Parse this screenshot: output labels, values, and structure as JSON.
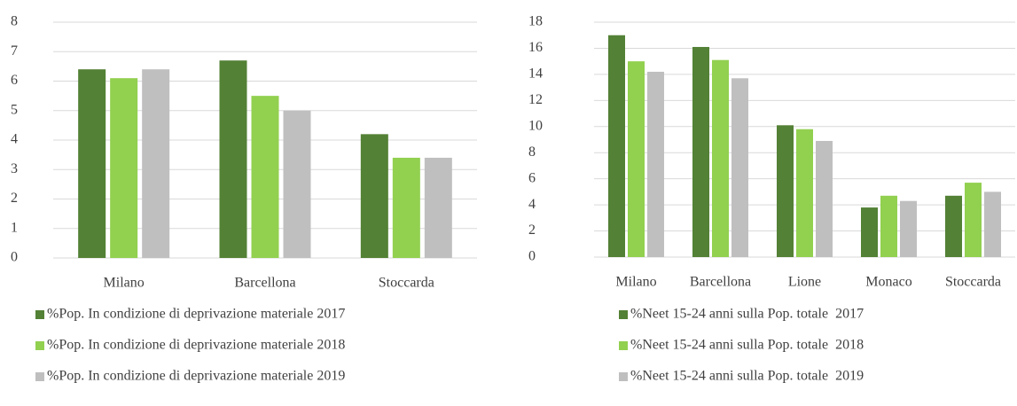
{
  "chart_data": [
    {
      "type": "bar",
      "categories": [
        "Milano",
        "Barcellona",
        "Stoccarda"
      ],
      "series": [
        {
          "name": "%Pop. In condizione di deprivazione materiale 2017",
          "color": "#538135",
          "values": [
            6.4,
            6.7,
            4.2
          ]
        },
        {
          "name": "%Pop. In condizione di deprivazione materiale 2018",
          "color": "#92d050",
          "values": [
            6.1,
            5.5,
            3.4
          ]
        },
        {
          "name": "%Pop. In condizione di deprivazione materiale 2019",
          "color": "#bfbfbf",
          "values": [
            6.4,
            5.0,
            3.4
          ]
        }
      ],
      "ylim": [
        0,
        8
      ],
      "yticks": [
        0,
        1,
        2,
        3,
        4,
        5,
        6,
        7,
        8
      ],
      "grid": true
    },
    {
      "type": "bar",
      "categories": [
        "Milano",
        "Barcellona",
        "Lione",
        "Monaco",
        "Stoccarda"
      ],
      "series": [
        {
          "name": "%Neet 15-24 anni sulla Pop. totale  2017",
          "color": "#538135",
          "values": [
            17.0,
            16.1,
            10.1,
            3.8,
            4.7
          ]
        },
        {
          "name": "%Neet 15-24 anni sulla Pop. totale  2018",
          "color": "#92d050",
          "values": [
            15.0,
            15.1,
            9.8,
            4.7,
            5.7
          ]
        },
        {
          "name": "%Neet 15-24 anni sulla Pop. totale  2019",
          "color": "#bfbfbf",
          "values": [
            14.2,
            13.7,
            8.9,
            4.3,
            5.0
          ]
        }
      ],
      "ylim": [
        0,
        18
      ],
      "yticks": [
        0,
        2,
        4,
        6,
        8,
        10,
        12,
        14,
        16,
        18
      ],
      "grid": true
    }
  ]
}
